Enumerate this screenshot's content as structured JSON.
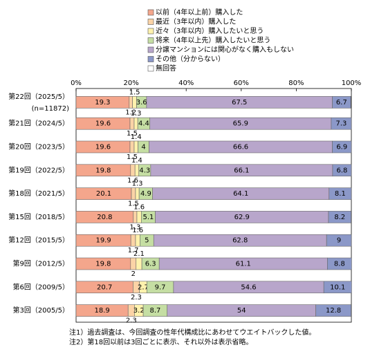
{
  "chart_data": {
    "type": "bar",
    "orientation": "horizontal",
    "stacked": true,
    "categories": [
      "第22回（2025/5）",
      "第21回（2024/5）",
      "第20回（2023/5）",
      "第19回（2022/5）",
      "第18回（2021/5）",
      "第15回（2018/5）",
      "第12回（2015/5）",
      "第9回（2012/5）",
      "第6回（2009/5）",
      "第3回（2005/5）"
    ],
    "n_label": "(n=11872)",
    "series": [
      {
        "name": "以前（4年以上前）購入した",
        "color": "#f4a68c",
        "values": [
          19.3,
          19.6,
          19.6,
          19.8,
          20.1,
          20.8,
          19.9,
          19.8,
          20.7,
          18.9
        ]
      },
      {
        "name": "最近（3年以内）購入した",
        "color": "#fbd3a6",
        "values": [
          1.2,
          1.5,
          1.5,
          1.6,
          1.5,
          1.3,
          1.7,
          2.0,
          2.3,
          2.3
        ]
      },
      {
        "name": "近々（3年以内）購入したいと思う",
        "color": "#fff2ad",
        "values": [
          1.5,
          1.3,
          1.4,
          1.4,
          1.3,
          1.6,
          1.6,
          2.1,
          2.7,
          3.2
        ]
      },
      {
        "name": "将来（4年以上先）購入したいと思う",
        "color": "#c5dea3",
        "values": [
          3.6,
          4.4,
          4.0,
          4.3,
          4.9,
          5.1,
          5.0,
          6.3,
          9.7,
          8.7
        ]
      },
      {
        "name": "分譲マンションには関心がなく購入もしない",
        "color": "#b8a6cb",
        "values": [
          67.5,
          65.9,
          66.6,
          66.1,
          64.1,
          62.9,
          62.8,
          61.1,
          54.6,
          54.0
        ]
      },
      {
        "name": "その他（分からない）",
        "color": "#8b98c8",
        "values": [
          6.7,
          7.3,
          6.9,
          6.8,
          8.1,
          8.2,
          9.0,
          8.8,
          10.1,
          12.8
        ]
      },
      {
        "name": "無回答",
        "color": "#ffffff",
        "values": [
          null,
          null,
          null,
          null,
          null,
          null,
          null,
          null,
          null,
          null
        ]
      }
    ],
    "xlim": [
      0,
      100
    ],
    "xticks": [
      {
        "value": 0,
        "label": "0%"
      },
      {
        "value": 20,
        "label": "20%"
      },
      {
        "value": 40,
        "label": "40%"
      },
      {
        "value": 60,
        "label": "60%"
      },
      {
        "value": 80,
        "label": "80%"
      },
      {
        "value": 100,
        "label": "100%"
      }
    ],
    "notes": [
      "注1）過去調査は、今回調査の性年代構成比にあわせてウエイトバックした値。",
      "注2）第18回以前は3回ごとに表示、それ以外は表示省略。"
    ]
  }
}
